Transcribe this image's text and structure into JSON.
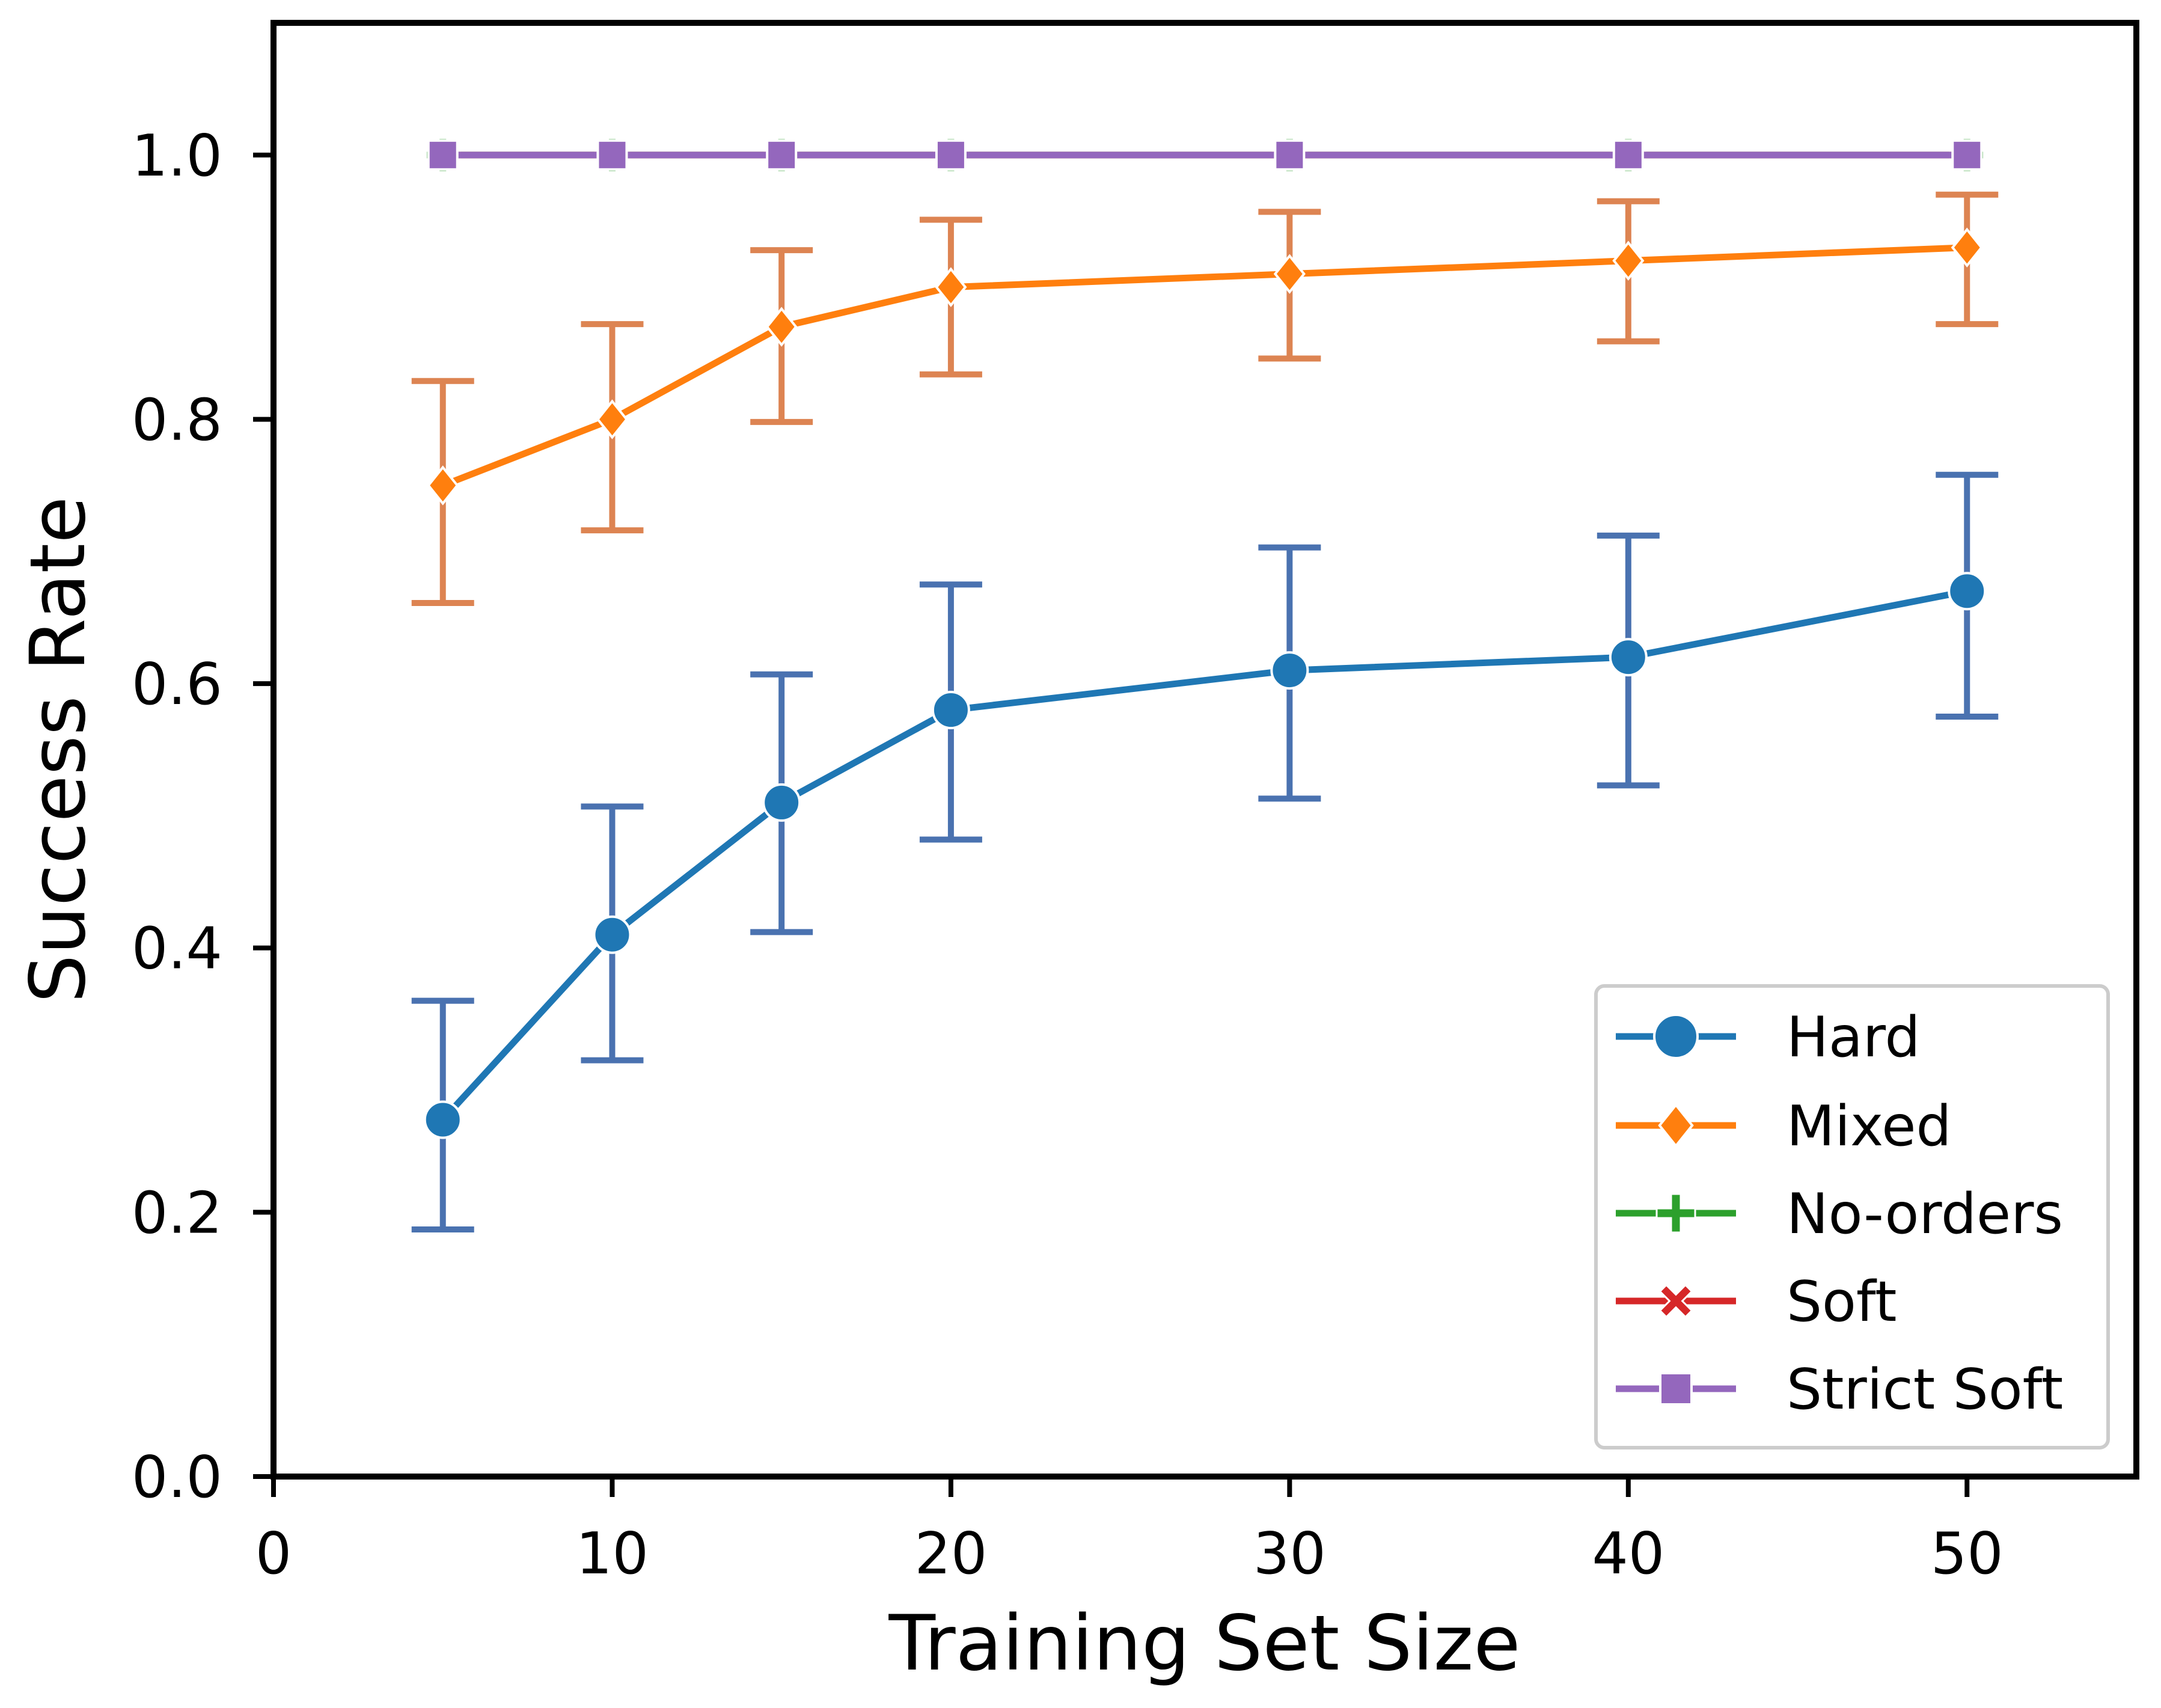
{
  "chart_data": {
    "type": "line",
    "title": "",
    "xlabel": "Training Set Size",
    "ylabel": "Success Rate",
    "xlim": [
      0,
      55
    ],
    "ylim": [
      0,
      1.1
    ],
    "xticks": [
      0,
      10,
      20,
      30,
      40,
      50
    ],
    "yticks": [
      0.0,
      0.2,
      0.4,
      0.6,
      0.8,
      1.0
    ],
    "xtick_labels": [
      "0",
      "10",
      "20",
      "30",
      "40",
      "50"
    ],
    "ytick_labels": [
      "0.0",
      "0.2",
      "0.4",
      "0.6",
      "0.8",
      "1.0"
    ],
    "grid": false,
    "legend_position": "lower-right",
    "x": [
      5,
      10,
      15,
      20,
      30,
      40,
      50
    ],
    "series": [
      {
        "name": "Hard",
        "color": "#1f77b4",
        "error_color": "#4a72b0",
        "marker": "circle",
        "values": [
          0.27,
          0.41,
          0.51,
          0.58,
          0.61,
          0.62,
          0.67
        ],
        "err_low": [
          0.187,
          0.315,
          0.412,
          0.482,
          0.513,
          0.523,
          0.575
        ],
        "err_high": [
          0.36,
          0.507,
          0.607,
          0.675,
          0.703,
          0.712,
          0.758
        ]
      },
      {
        "name": "Mixed",
        "color": "#ff7f0e",
        "error_color": "#dd8452",
        "marker": "diamond",
        "values": [
          0.75,
          0.8,
          0.87,
          0.9,
          0.91,
          0.92,
          0.93
        ],
        "err_low": [
          0.661,
          0.716,
          0.798,
          0.834,
          0.846,
          0.859,
          0.872
        ],
        "err_high": [
          0.829,
          0.872,
          0.928,
          0.951,
          0.957,
          0.965,
          0.97
        ]
      },
      {
        "name": "No-orders",
        "color": "#2ca02c",
        "marker": "plus",
        "values": [
          1.0,
          1.0,
          1.0,
          1.0,
          1.0,
          1.0,
          1.0
        ]
      },
      {
        "name": "Soft",
        "color": "#d62728",
        "marker": "x",
        "values": [
          1.0,
          1.0,
          1.0,
          1.0,
          1.0,
          1.0,
          1.0
        ]
      },
      {
        "name": "Strict Soft",
        "color": "#9467bd",
        "marker": "square",
        "values": [
          1.0,
          1.0,
          1.0,
          1.0,
          1.0,
          1.0,
          1.0
        ]
      }
    ]
  }
}
